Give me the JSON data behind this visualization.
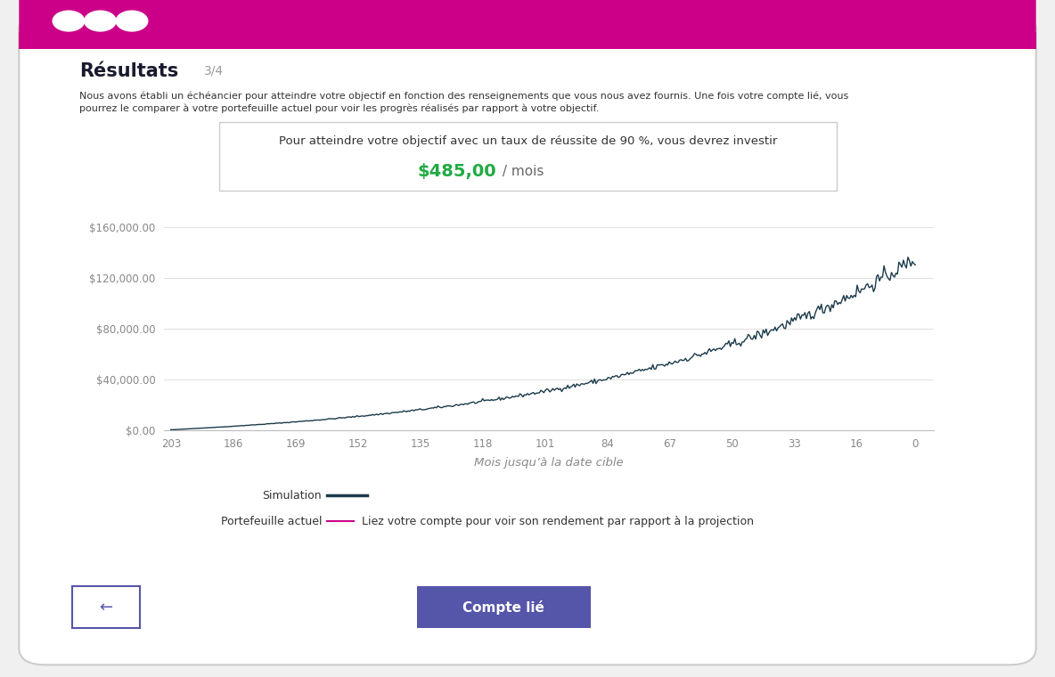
{
  "bg_color": "#ffffff",
  "border_color": "#cccccc",
  "header_color": "#cc0088",
  "title": "Résultats",
  "title_sub": "3/4",
  "description_line1": "Nous avons établi un échéancier pour atteindre votre objectif en fonction des renseignements que vous nous avez fournis. Une fois votre compte lié, vous",
  "description_line2": "pourrez le comparer à votre portefeuille actuel pour voir les progrès réalisés par rapport à votre objectif.",
  "box_text_line1": "Pour atteindre votre objectif avec un taux de réussite de 90 %, vous devrez investir",
  "box_amount": "$485,00",
  "box_unit": " / mois",
  "amount_color": "#22aa44",
  "xlabel": "Mois jusqu’à la date cible",
  "yticks": [
    0,
    40000,
    80000,
    120000,
    160000
  ],
  "ytick_labels": [
    "$0.00",
    "$40,000.00",
    "$80,000.00",
    "$120,000.00",
    "$160,000.00"
  ],
  "xticks": [
    203,
    186,
    169,
    152,
    135,
    118,
    101,
    84,
    67,
    50,
    33,
    16,
    0
  ],
  "ylim": [
    0,
    168000
  ],
  "xlim": [
    205,
    -5
  ],
  "line_color": "#1b3a4b",
  "line_color2": "#cc0088",
  "legend_sim": "Simulation",
  "legend_port": "Portefeuille actuel",
  "legend_note": "Liez votre compte pour voir son rendement par rapport à la projection",
  "btn_back_text": "←",
  "btn_link_text": "Compte lié",
  "btn_link_color": "#5555aa",
  "btn_border_color": "#5555aa",
  "axis_label_color": "#888888",
  "tick_label_color": "#888888",
  "grid_color": "#e0e0e0",
  "tick_label_fontsize": 8.5,
  "axis_label_fontsize": 9.5,
  "noise_scale": 0.025
}
